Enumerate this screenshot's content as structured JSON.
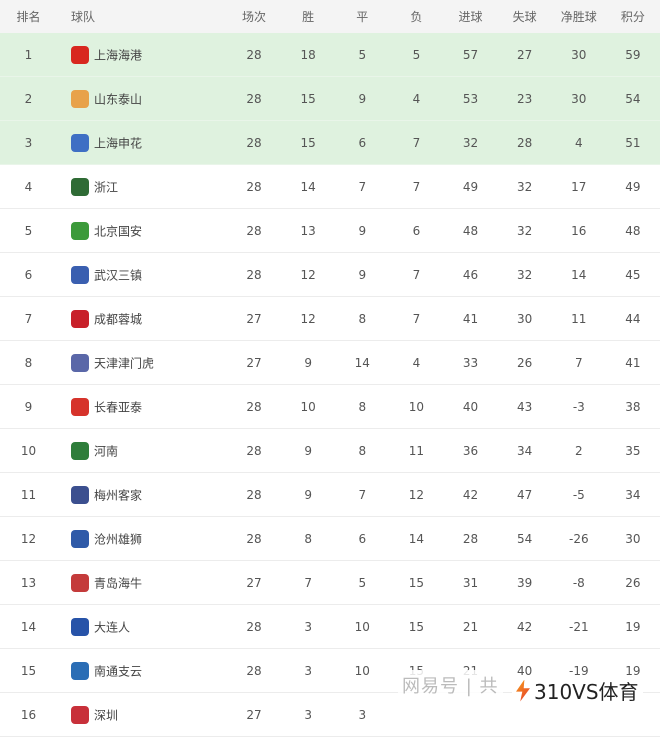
{
  "headers": {
    "rank": "排名",
    "team": "球队",
    "played": "场次",
    "won": "胜",
    "drawn": "平",
    "lost": "负",
    "gf": "进球",
    "ga": "失球",
    "gd": "净胜球",
    "pts": "积分"
  },
  "highlight_color": "#dff2df",
  "rows": [
    {
      "rank": "1",
      "team": "上海海港",
      "logo_color": "#d8271f",
      "played": "28",
      "won": "18",
      "drawn": "5",
      "lost": "5",
      "gf": "57",
      "ga": "27",
      "gd": "30",
      "pts": "59"
    },
    {
      "rank": "2",
      "team": "山东泰山",
      "logo_color": "#e8a24a",
      "played": "28",
      "won": "15",
      "drawn": "9",
      "lost": "4",
      "gf": "53",
      "ga": "23",
      "gd": "30",
      "pts": "54"
    },
    {
      "rank": "3",
      "team": "上海申花",
      "logo_color": "#3f6fc4",
      "played": "28",
      "won": "15",
      "drawn": "6",
      "lost": "7",
      "gf": "32",
      "ga": "28",
      "gd": "4",
      "pts": "51"
    },
    {
      "rank": "4",
      "team": "浙江",
      "logo_color": "#2f6b35",
      "played": "28",
      "won": "14",
      "drawn": "7",
      "lost": "7",
      "gf": "49",
      "ga": "32",
      "gd": "17",
      "pts": "49"
    },
    {
      "rank": "5",
      "team": "北京国安",
      "logo_color": "#3c9a3a",
      "played": "28",
      "won": "13",
      "drawn": "9",
      "lost": "6",
      "gf": "48",
      "ga": "32",
      "gd": "16",
      "pts": "48"
    },
    {
      "rank": "6",
      "team": "武汉三镇",
      "logo_color": "#3a5fb0",
      "played": "28",
      "won": "12",
      "drawn": "9",
      "lost": "7",
      "gf": "46",
      "ga": "32",
      "gd": "14",
      "pts": "45"
    },
    {
      "rank": "7",
      "team": "成都蓉城",
      "logo_color": "#c8202a",
      "played": "27",
      "won": "12",
      "drawn": "8",
      "lost": "7",
      "gf": "41",
      "ga": "30",
      "gd": "11",
      "pts": "44"
    },
    {
      "rank": "8",
      "team": "天津津门虎",
      "logo_color": "#5a67a8",
      "played": "27",
      "won": "9",
      "drawn": "14",
      "lost": "4",
      "gf": "33",
      "ga": "26",
      "gd": "7",
      "pts": "41"
    },
    {
      "rank": "9",
      "team": "长春亚泰",
      "logo_color": "#d6332b",
      "played": "28",
      "won": "10",
      "drawn": "8",
      "lost": "10",
      "gf": "40",
      "ga": "43",
      "gd": "-3",
      "pts": "38"
    },
    {
      "rank": "10",
      "team": "河南",
      "logo_color": "#2e7d3a",
      "played": "28",
      "won": "9",
      "drawn": "8",
      "lost": "11",
      "gf": "36",
      "ga": "34",
      "gd": "2",
      "pts": "35"
    },
    {
      "rank": "11",
      "team": "梅州客家",
      "logo_color": "#3b4f8f",
      "played": "28",
      "won": "9",
      "drawn": "7",
      "lost": "12",
      "gf": "42",
      "ga": "47",
      "gd": "-5",
      "pts": "34"
    },
    {
      "rank": "12",
      "team": "沧州雄狮",
      "logo_color": "#2f5aa8",
      "played": "28",
      "won": "8",
      "drawn": "6",
      "lost": "14",
      "gf": "28",
      "ga": "54",
      "gd": "-26",
      "pts": "30"
    },
    {
      "rank": "13",
      "team": "青岛海牛",
      "logo_color": "#c43b3b",
      "played": "27",
      "won": "7",
      "drawn": "5",
      "lost": "15",
      "gf": "31",
      "ga": "39",
      "gd": "-8",
      "pts": "26"
    },
    {
      "rank": "14",
      "team": "大连人",
      "logo_color": "#2753a8",
      "played": "28",
      "won": "3",
      "drawn": "10",
      "lost": "15",
      "gf": "21",
      "ga": "42",
      "gd": "-21",
      "pts": "19"
    },
    {
      "rank": "15",
      "team": "南通支云",
      "logo_color": "#2a6db5",
      "played": "28",
      "won": "3",
      "drawn": "10",
      "lost": "15",
      "gf": "21",
      "ga": "40",
      "gd": "-19",
      "pts": "19"
    },
    {
      "rank": "16",
      "team": "深圳",
      "logo_color": "#c8303a",
      "played": "27",
      "won": "3",
      "drawn": "3",
      "lost": "",
      "gf": "",
      "ga": "",
      "gd": "",
      "pts": ""
    }
  ],
  "watermarks": {
    "netease": "网易号 | 共",
    "brand": "310VS体育"
  }
}
